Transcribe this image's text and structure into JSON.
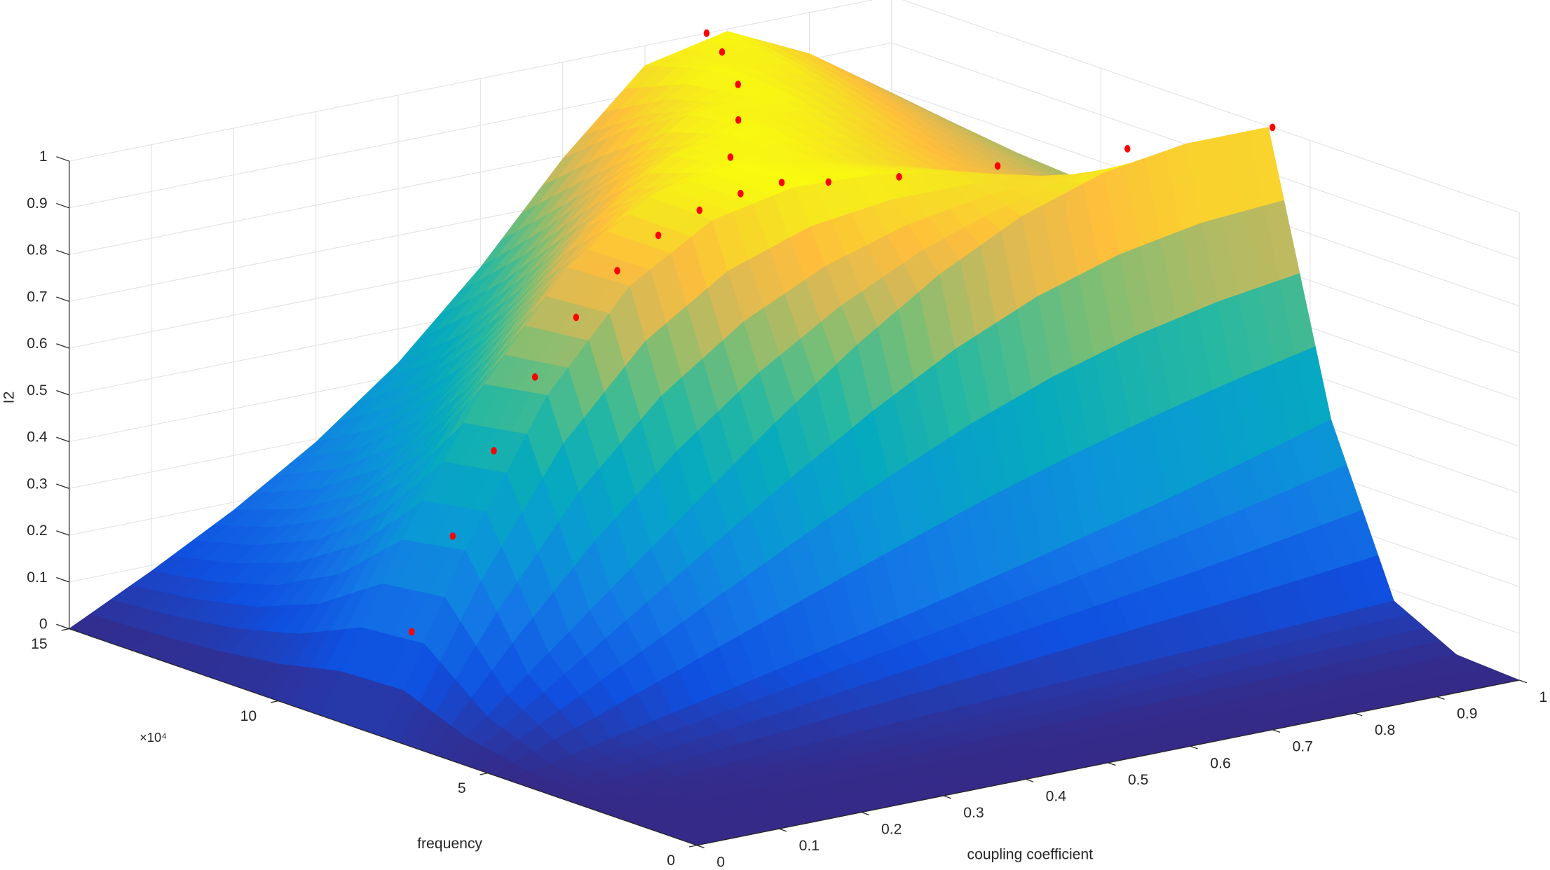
{
  "chart_data": {
    "type": "surface3d",
    "xlabel": "coupling coefficient",
    "ylabel": "frequency",
    "zlabel": "I2",
    "y_exponent_label": "×10⁴",
    "colormap": "parula",
    "grid": true,
    "xlim": [
      0,
      1
    ],
    "ylim": [
      0,
      15
    ],
    "zlim": [
      0,
      1
    ],
    "xticks": [
      0,
      0.1,
      0.2,
      0.3,
      0.4,
      0.5,
      0.6,
      0.7,
      0.8,
      0.9,
      1
    ],
    "yticks": [
      0,
      5,
      10,
      15
    ],
    "zticks": [
      0,
      0.1,
      0.2,
      0.3,
      0.4,
      0.5,
      0.6,
      0.7,
      0.8,
      0.9,
      1
    ],
    "x": [
      0,
      0.1,
      0.2,
      0.3,
      0.4,
      0.5,
      0.6,
      0.7,
      0.8,
      0.9,
      1
    ],
    "y": [
      0,
      1.5,
      3,
      4.5,
      6,
      7.5,
      9,
      10.5,
      12,
      13.5,
      15
    ],
    "z": [
      [
        0,
        0,
        0,
        0,
        0,
        0,
        0,
        0,
        0,
        0,
        0
      ],
      [
        0,
        0.001,
        0.002,
        0.002,
        0.003,
        0.004,
        0.005,
        0.005,
        0.006,
        0.007,
        0.008
      ],
      [
        0,
        0.007,
        0.015,
        0.022,
        0.03,
        0.038,
        0.045,
        0.053,
        0.06,
        0.068,
        0.077
      ],
      [
        0,
        0.036,
        0.073,
        0.111,
        0.149,
        0.188,
        0.23,
        0.273,
        0.318,
        0.367,
        0.418
      ],
      [
        0,
        0.145,
        0.29,
        0.434,
        0.576,
        0.708,
        0.823,
        0.912,
        0.97,
        0.997,
        0.997
      ],
      [
        0,
        0.363,
        0.66,
        0.858,
        0.963,
        0.999,
        0.991,
        0.96,
        0.917,
        0.869,
        0.821
      ],
      [
        0,
        0.34,
        0.637,
        0.852,
        0.968,
        1,
        0.978,
        0.93,
        0.871,
        0.812,
        0.756
      ],
      [
        0,
        0.22,
        0.445,
        0.667,
        0.857,
        0.973,
        0.999,
        0.96,
        0.892,
        0.817,
        0.747
      ],
      [
        0,
        0.15,
        0.31,
        0.488,
        0.682,
        0.864,
        0.98,
        0.994,
        0.933,
        0.845,
        0.757
      ],
      [
        0,
        0.111,
        0.231,
        0.369,
        0.533,
        0.722,
        0.901,
        0.996,
        0.972,
        0.879,
        0.774
      ],
      [
        0,
        0.088,
        0.183,
        0.293,
        0.427,
        0.596,
        0.793,
        0.957,
        0.995,
        0.912,
        0.793
      ]
    ],
    "markers": {
      "color": "#ff0000",
      "x": [
        0.05,
        0.1,
        0.15,
        0.2,
        0.25,
        0.3,
        0.35,
        0.4,
        0.45,
        0.5,
        0.517,
        0.606,
        0.685,
        0.745,
        0.775,
        0.537,
        0.603,
        0.703,
        0.841,
        1
      ],
      "y": [
        7.8,
        7.8,
        7.8,
        7.8,
        7.8,
        7.8,
        7.8,
        7.8,
        7.8,
        7.8,
        9.36,
        10.92,
        12.48,
        14.04,
        15,
        7.41,
        7.02,
        6.63,
        6.24,
        5.9
      ],
      "z": [
        0.198,
        0.385,
        0.55,
        0.69,
        0.8,
        0.882,
        0.94,
        0.976,
        0.994,
        1,
        1,
        1,
        1,
        1,
        1,
        1,
        1,
        1,
        1,
        1
      ]
    }
  }
}
